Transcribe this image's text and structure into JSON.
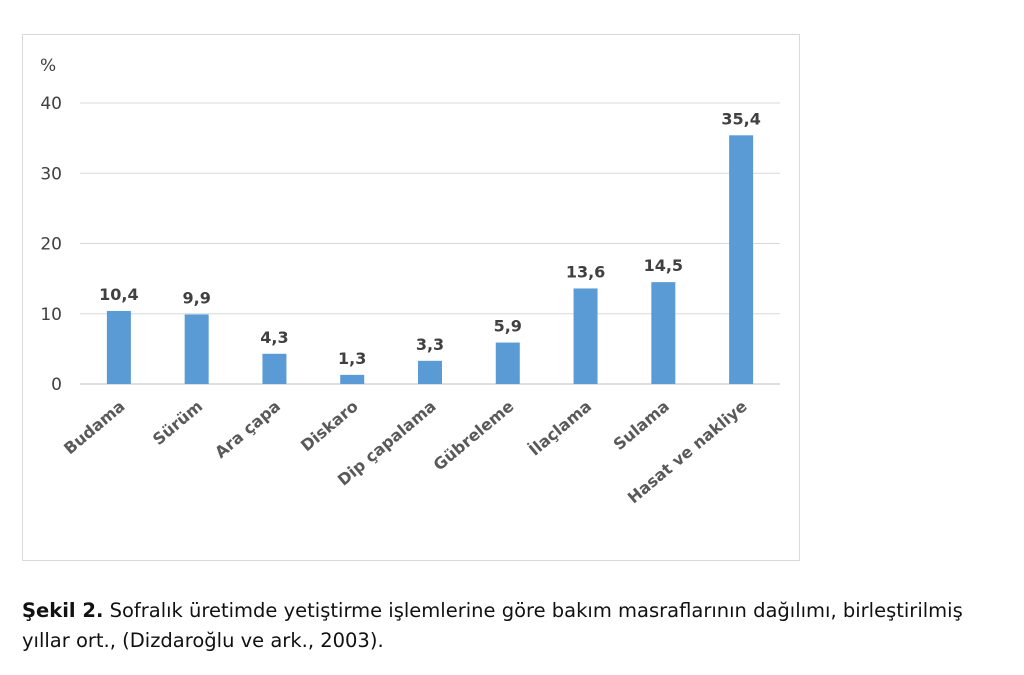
{
  "chart_data": {
    "type": "bar",
    "ylabel": "%",
    "ylim": [
      0,
      40
    ],
    "yticks": [
      0,
      10,
      20,
      30,
      40
    ],
    "grid": true,
    "bar_color": "#5b9bd5",
    "categories": [
      "Budama",
      "Sürüm",
      "Ara çapa",
      "Diskaro",
      "Dip çapalama",
      "Gübreleme",
      "İlaçlama",
      "Sulama",
      "Hasat ve nakliye"
    ],
    "values": [
      10.4,
      9.9,
      4.3,
      1.3,
      3.3,
      5.9,
      13.6,
      14.5,
      35.4
    ],
    "data_labels": [
      "10,4",
      "9,9",
      "4,3",
      "1,3",
      "3,3",
      "5,9",
      "13,6",
      "14,5",
      "35,4"
    ]
  },
  "caption": {
    "label": "Şekil 2.",
    "text": " Sofralık üretimde yetiştirme işlemlerine göre bakım masraflarının dağılımı, birleştirilmiş yıllar ort., (Dizdaroğlu ve ark., 2003)."
  }
}
